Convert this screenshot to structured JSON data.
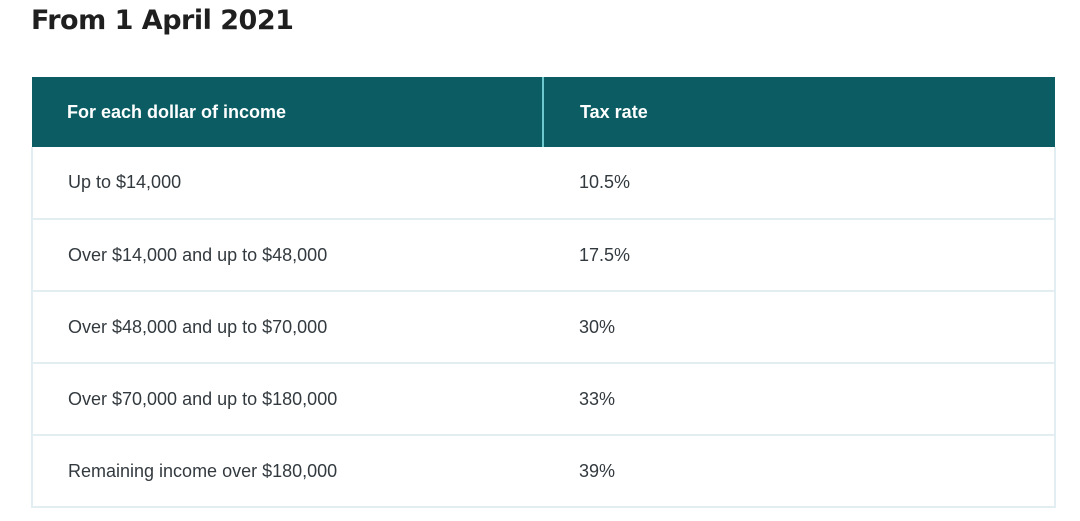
{
  "heading": "From 1 April 2021",
  "table": {
    "headers": {
      "income": "For each dollar of income",
      "rate": "Tax rate"
    },
    "rows": [
      {
        "income": "Up to $14,000",
        "rate": "10.5%"
      },
      {
        "income": "Over $14,000 and up to $48,000",
        "rate": "17.5%"
      },
      {
        "income": "Over $48,000 and up to $70,000",
        "rate": "30%"
      },
      {
        "income": "Over $70,000 and up to $180,000",
        "rate": "33%"
      },
      {
        "income": "Remaining income over $180,000",
        "rate": "39%"
      }
    ]
  },
  "colors": {
    "header_bg": "#0b5d63",
    "header_divider": "#6ec9cf",
    "row_border": "#e3eef3"
  }
}
